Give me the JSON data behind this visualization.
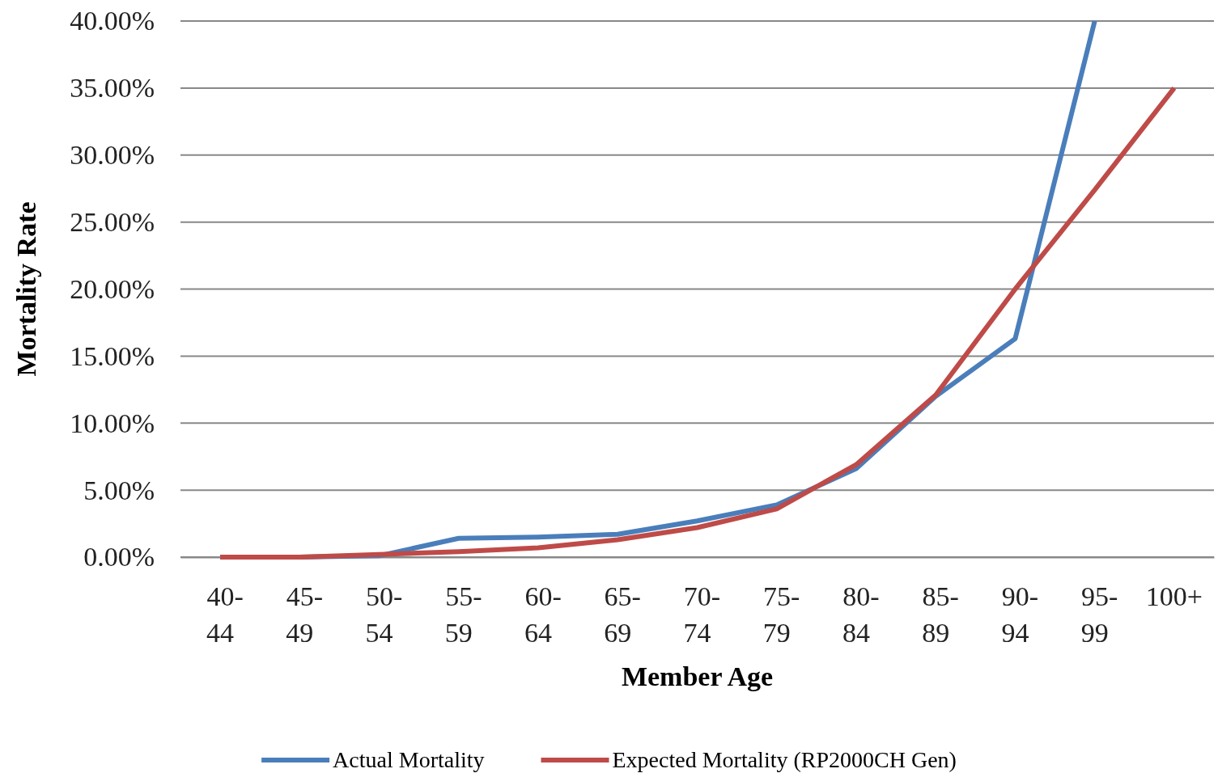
{
  "chart_data": {
    "type": "line",
    "xlabel": "Member Age",
    "ylabel": "Mortality Rate",
    "categories": [
      "40-44",
      "45-49",
      "50-54",
      "55-59",
      "60-64",
      "65-69",
      "70-74",
      "75-79",
      "80-84",
      "85-89",
      "90-94",
      "95-99",
      "100+"
    ],
    "series": [
      {
        "name": "Actual Mortality",
        "color": "#4a7ebb",
        "values": [
          0,
          0,
          0.1,
          1.4,
          1.5,
          1.7,
          2.7,
          3.9,
          6.6,
          12,
          16.3,
          40,
          null
        ]
      },
      {
        "name": "Expected Mortality (RP2000CH Gen)",
        "color": "#be4b48",
        "values": [
          0,
          0,
          0.2,
          0.4,
          0.7,
          1.3,
          2.2,
          3.6,
          6.9,
          12.1,
          20,
          27.4,
          35
        ]
      }
    ],
    "ylim": [
      0,
      40
    ],
    "yticks": [
      {
        "value": 0,
        "label": "0.00%"
      },
      {
        "value": 5,
        "label": "5.00%"
      },
      {
        "value": 10,
        "label": "10.00%"
      },
      {
        "value": 15,
        "label": "15.00%"
      },
      {
        "value": 20,
        "label": "20.00%"
      },
      {
        "value": 25,
        "label": "25.00%"
      },
      {
        "value": 30,
        "label": "30.00%"
      },
      {
        "value": 35,
        "label": "35.00%"
      },
      {
        "value": 40,
        "label": "40.00%"
      }
    ],
    "grid": "y",
    "legend": "bottom",
    "marker": "none",
    "line_style": "solid"
  }
}
